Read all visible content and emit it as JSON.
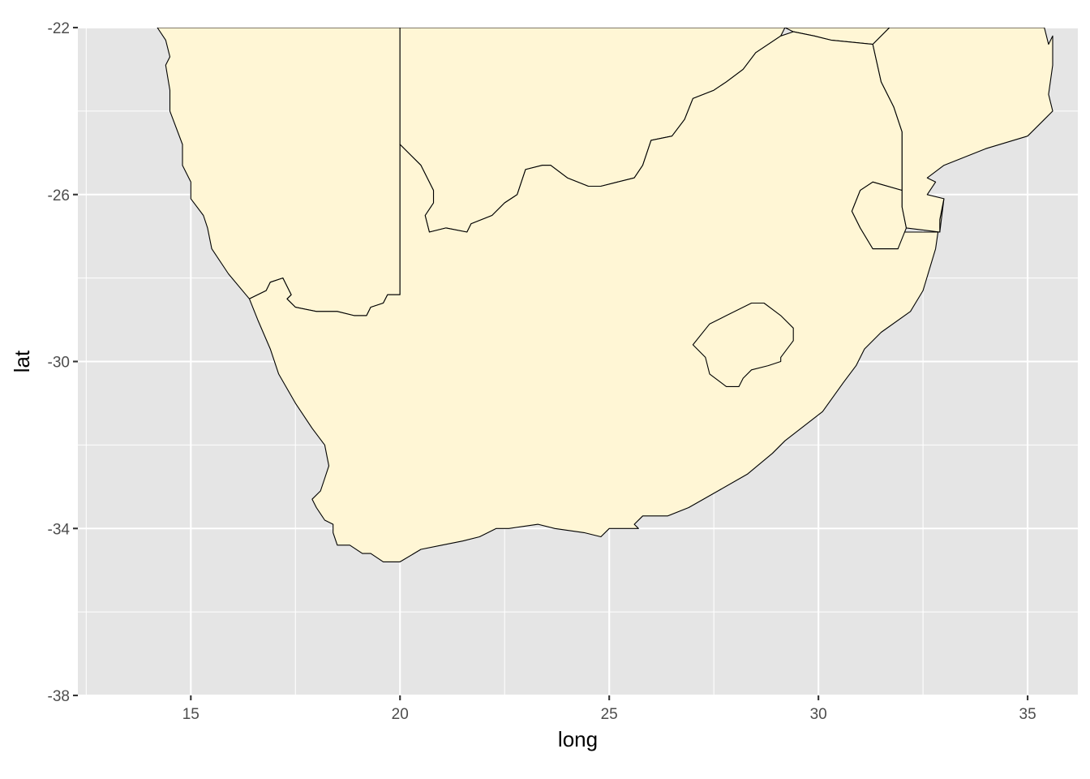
{
  "chart_data": {
    "type": "map",
    "title": "",
    "xlabel": "long",
    "ylabel": "lat",
    "xlim": [
      12.3,
      36.2
    ],
    "ylim": [
      -38,
      -22
    ],
    "x_ticks": [
      15,
      20,
      25,
      30,
      35
    ],
    "y_ticks": [
      -22,
      -26,
      -30,
      -34,
      -38
    ],
    "x_tick_labels": [
      "15",
      "20",
      "25",
      "30",
      "35"
    ],
    "y_tick_labels": [
      "-22",
      "-26",
      "-30",
      "-34",
      "-38"
    ],
    "grid": true,
    "fill_color": "#fff6d5",
    "border_color": "#000000",
    "panel_color": "#e5e5e5",
    "regions": [
      {
        "id": "namibia",
        "points": [
          [
            14.2,
            -22
          ],
          [
            14.4,
            -22.3
          ],
          [
            14.5,
            -22.7
          ],
          [
            14.4,
            -22.9
          ],
          [
            14.5,
            -23.5
          ],
          [
            14.5,
            -24
          ],
          [
            14.8,
            -24.8
          ],
          [
            14.8,
            -25.3
          ],
          [
            15.0,
            -25.7
          ],
          [
            15.0,
            -26.1
          ],
          [
            15.3,
            -26.5
          ],
          [
            15.4,
            -26.8
          ],
          [
            15.5,
            -27.3
          ],
          [
            15.9,
            -27.9
          ],
          [
            16.4,
            -28.5
          ],
          [
            16.8,
            -28.3
          ],
          [
            16.9,
            -28.1
          ],
          [
            17.2,
            -28.0
          ],
          [
            17.3,
            -28.2
          ],
          [
            17.4,
            -28.4
          ],
          [
            17.3,
            -28.5
          ],
          [
            17.5,
            -28.7
          ],
          [
            18.0,
            -28.8
          ],
          [
            18.5,
            -28.8
          ],
          [
            18.9,
            -28.9
          ],
          [
            19.2,
            -28.9
          ],
          [
            19.3,
            -28.7
          ],
          [
            19.6,
            -28.6
          ],
          [
            19.7,
            -28.4
          ],
          [
            20.0,
            -28.4
          ],
          [
            20.0,
            -22
          ]
        ]
      },
      {
        "id": "botswana",
        "points": [
          [
            20.0,
            -22
          ],
          [
            21.0,
            -22
          ],
          [
            23.0,
            -22
          ],
          [
            28.0,
            -22
          ],
          [
            29.2,
            -22
          ],
          [
            29.4,
            -22.1
          ],
          [
            29.9,
            -22.2
          ],
          [
            30.3,
            -22.3
          ],
          [
            31.3,
            -22.4
          ],
          [
            31.7,
            -22
          ],
          [
            29.2,
            -22
          ],
          [
            29.1,
            -22.2
          ],
          [
            28.5,
            -22.6
          ],
          [
            28.2,
            -23.0
          ],
          [
            27.8,
            -23.3
          ],
          [
            27.5,
            -23.5
          ],
          [
            27.0,
            -23.7
          ],
          [
            26.8,
            -24.2
          ],
          [
            26.5,
            -24.6
          ],
          [
            26.0,
            -24.7
          ],
          [
            25.8,
            -25.3
          ],
          [
            25.6,
            -25.6
          ],
          [
            25.2,
            -25.7
          ],
          [
            24.8,
            -25.8
          ],
          [
            24.5,
            -25.8
          ],
          [
            24.0,
            -25.6
          ],
          [
            23.6,
            -25.3
          ],
          [
            23.4,
            -25.3
          ],
          [
            23.0,
            -25.4
          ],
          [
            22.8,
            -26.0
          ],
          [
            22.5,
            -26.2
          ],
          [
            22.2,
            -26.5
          ],
          [
            21.7,
            -26.7
          ],
          [
            21.6,
            -26.9
          ],
          [
            21.1,
            -26.8
          ],
          [
            20.7,
            -26.9
          ],
          [
            20.6,
            -26.5
          ],
          [
            20.8,
            -26.2
          ],
          [
            20.8,
            -25.9
          ],
          [
            20.5,
            -25.3
          ],
          [
            20.0,
            -24.8
          ],
          [
            20.0,
            -22
          ]
        ]
      },
      {
        "id": "south-africa",
        "points": [
          [
            16.4,
            -28.5
          ],
          [
            16.8,
            -28.3
          ],
          [
            16.9,
            -28.1
          ],
          [
            17.2,
            -28.0
          ],
          [
            17.3,
            -28.2
          ],
          [
            17.4,
            -28.4
          ],
          [
            17.3,
            -28.5
          ],
          [
            17.5,
            -28.7
          ],
          [
            18.0,
            -28.8
          ],
          [
            18.5,
            -28.8
          ],
          [
            18.9,
            -28.9
          ],
          [
            19.2,
            -28.9
          ],
          [
            19.3,
            -28.7
          ],
          [
            19.6,
            -28.6
          ],
          [
            19.7,
            -28.4
          ],
          [
            20.0,
            -28.4
          ],
          [
            20.0,
            -24.8
          ],
          [
            20.5,
            -25.3
          ],
          [
            20.8,
            -25.9
          ],
          [
            20.8,
            -26.2
          ],
          [
            20.6,
            -26.5
          ],
          [
            20.7,
            -26.9
          ],
          [
            21.1,
            -26.8
          ],
          [
            21.6,
            -26.9
          ],
          [
            21.7,
            -26.7
          ],
          [
            22.2,
            -26.5
          ],
          [
            22.5,
            -26.2
          ],
          [
            22.8,
            -26.0
          ],
          [
            23.0,
            -25.4
          ],
          [
            23.4,
            -25.3
          ],
          [
            23.6,
            -25.3
          ],
          [
            24.0,
            -25.6
          ],
          [
            24.5,
            -25.8
          ],
          [
            24.8,
            -25.8
          ],
          [
            25.2,
            -25.7
          ],
          [
            25.6,
            -25.6
          ],
          [
            25.8,
            -25.3
          ],
          [
            26.0,
            -24.7
          ],
          [
            26.5,
            -24.6
          ],
          [
            26.8,
            -24.2
          ],
          [
            27.0,
            -23.7
          ],
          [
            27.5,
            -23.5
          ],
          [
            27.8,
            -23.3
          ],
          [
            28.2,
            -23.0
          ],
          [
            28.5,
            -22.6
          ],
          [
            29.1,
            -22.2
          ],
          [
            29.4,
            -22.1
          ],
          [
            29.9,
            -22.2
          ],
          [
            30.3,
            -22.3
          ],
          [
            31.3,
            -22.4
          ],
          [
            31.5,
            -23.3
          ],
          [
            31.8,
            -23.9
          ],
          [
            32.0,
            -24.5
          ],
          [
            32.0,
            -25.5
          ],
          [
            32.0,
            -25.9
          ],
          [
            31.3,
            -25.7
          ],
          [
            31.0,
            -25.9
          ],
          [
            30.8,
            -26.4
          ],
          [
            31.0,
            -26.8
          ],
          [
            31.3,
            -27.3
          ],
          [
            31.9,
            -27.3
          ],
          [
            32.0,
            -26.9
          ],
          [
            32.9,
            -26.9
          ],
          [
            33.0,
            -26.1
          ],
          [
            32.9,
            -26.6
          ],
          [
            32.8,
            -27.3
          ],
          [
            32.5,
            -28.3
          ],
          [
            32.2,
            -28.8
          ],
          [
            31.5,
            -29.3
          ],
          [
            31.1,
            -29.7
          ],
          [
            30.9,
            -30.1
          ],
          [
            30.6,
            -30.5
          ],
          [
            30.1,
            -31.2
          ],
          [
            29.2,
            -31.9
          ],
          [
            28.9,
            -32.2
          ],
          [
            28.3,
            -32.7
          ],
          [
            27.6,
            -33.1
          ],
          [
            26.9,
            -33.5
          ],
          [
            26.4,
            -33.7
          ],
          [
            25.8,
            -33.7
          ],
          [
            25.6,
            -33.9
          ],
          [
            25.7,
            -34.0
          ],
          [
            25.0,
            -34.0
          ],
          [
            24.8,
            -34.2
          ],
          [
            24.4,
            -34.1
          ],
          [
            23.7,
            -34.0
          ],
          [
            23.3,
            -33.9
          ],
          [
            22.6,
            -34.0
          ],
          [
            22.3,
            -34.0
          ],
          [
            21.9,
            -34.2
          ],
          [
            21.5,
            -34.3
          ],
          [
            21.0,
            -34.4
          ],
          [
            20.5,
            -34.5
          ],
          [
            20.0,
            -34.8
          ],
          [
            19.6,
            -34.8
          ],
          [
            19.3,
            -34.6
          ],
          [
            19.1,
            -34.6
          ],
          [
            18.8,
            -34.4
          ],
          [
            18.5,
            -34.4
          ],
          [
            18.4,
            -34.1
          ],
          [
            18.4,
            -33.9
          ],
          [
            18.2,
            -33.8
          ],
          [
            18.0,
            -33.5
          ],
          [
            17.9,
            -33.3
          ],
          [
            18.1,
            -33.1
          ],
          [
            18.2,
            -32.8
          ],
          [
            18.3,
            -32.5
          ],
          [
            18.2,
            -32.0
          ],
          [
            17.9,
            -31.6
          ],
          [
            17.5,
            -31.0
          ],
          [
            17.1,
            -30.3
          ],
          [
            16.9,
            -29.7
          ],
          [
            16.6,
            -29.0
          ],
          [
            16.4,
            -28.5
          ]
        ]
      },
      {
        "id": "lesotho",
        "points": [
          [
            27.0,
            -29.6
          ],
          [
            27.4,
            -29.1
          ],
          [
            27.8,
            -28.9
          ],
          [
            28.4,
            -28.6
          ],
          [
            28.7,
            -28.6
          ],
          [
            29.1,
            -28.9
          ],
          [
            29.4,
            -29.2
          ],
          [
            29.4,
            -29.5
          ],
          [
            29.1,
            -29.9
          ],
          [
            29.1,
            -30.0
          ],
          [
            28.8,
            -30.1
          ],
          [
            28.4,
            -30.2
          ],
          [
            28.2,
            -30.4
          ],
          [
            28.1,
            -30.6
          ],
          [
            27.8,
            -30.6
          ],
          [
            27.4,
            -30.3
          ],
          [
            27.3,
            -29.9
          ],
          [
            27.0,
            -29.6
          ]
        ]
      },
      {
        "id": "eswatini",
        "points": [
          [
            30.8,
            -26.4
          ],
          [
            31.0,
            -25.9
          ],
          [
            31.3,
            -25.7
          ],
          [
            32.0,
            -25.9
          ],
          [
            32.0,
            -26.3
          ],
          [
            32.1,
            -26.8
          ],
          [
            31.9,
            -27.3
          ],
          [
            31.3,
            -27.3
          ],
          [
            31.0,
            -26.8
          ],
          [
            30.8,
            -26.4
          ]
        ]
      },
      {
        "id": "mozambique",
        "points": [
          [
            31.3,
            -22.4
          ],
          [
            31.7,
            -22
          ],
          [
            35.4,
            -22
          ],
          [
            35.5,
            -22.4
          ],
          [
            35.6,
            -22.2
          ],
          [
            35.6,
            -22.9
          ],
          [
            35.5,
            -23.6
          ],
          [
            35.6,
            -24.0
          ],
          [
            35.4,
            -24.2
          ],
          [
            35.0,
            -24.6
          ],
          [
            34.0,
            -24.9
          ],
          [
            33.0,
            -25.3
          ],
          [
            32.6,
            -25.6
          ],
          [
            32.8,
            -25.7
          ],
          [
            32.6,
            -26.0
          ],
          [
            33.0,
            -26.1
          ],
          [
            32.9,
            -26.6
          ],
          [
            32.9,
            -26.9
          ],
          [
            32.1,
            -26.8
          ],
          [
            32.0,
            -26.3
          ],
          [
            32.0,
            -25.9
          ],
          [
            32.0,
            -25.5
          ],
          [
            32.0,
            -24.5
          ],
          [
            31.8,
            -23.9
          ],
          [
            31.5,
            -23.3
          ],
          [
            31.3,
            -22.4
          ]
        ]
      }
    ]
  }
}
